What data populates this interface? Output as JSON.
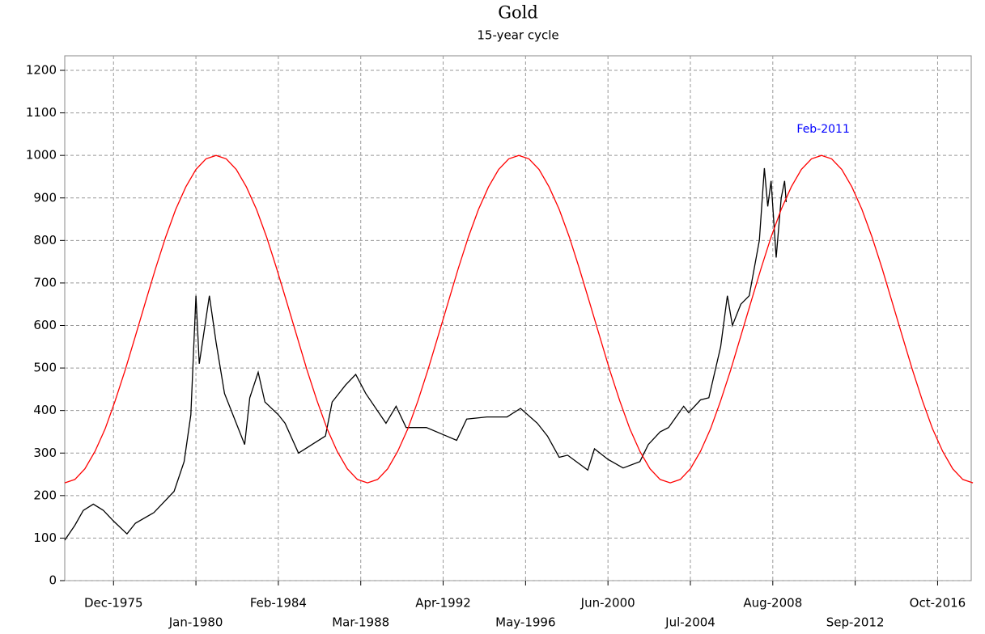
{
  "chart_data": {
    "type": "line",
    "title": "Gold",
    "subtitle": "15-year cycle",
    "xlim": [
      "1973-07",
      "2018-06"
    ],
    "xticks": [
      {
        "value": "1975-12",
        "label": "Dec-1975"
      },
      {
        "value": "1980-01",
        "label": "Jan-1980"
      },
      {
        "value": "1984-02",
        "label": "Feb-1984"
      },
      {
        "value": "1988-03",
        "label": "Mar-1988"
      },
      {
        "value": "1992-04",
        "label": "Apr-1992"
      },
      {
        "value": "1996-05",
        "label": "May-1996"
      },
      {
        "value": "2000-06",
        "label": "Jun-2000"
      },
      {
        "value": "2004-07",
        "label": "Jul-2004"
      },
      {
        "value": "2008-08",
        "label": "Aug-2008"
      },
      {
        "value": "2012-09",
        "label": "Sep-2012"
      },
      {
        "value": "2016-10",
        "label": "Oct-2016"
      }
    ],
    "ylim": [
      0,
      1200
    ],
    "yticks": [
      0,
      100,
      200,
      300,
      400,
      500,
      600,
      700,
      800,
      900,
      1000,
      1100,
      1200
    ],
    "grid": true,
    "annotations": [
      {
        "text": "Feb-2011",
        "x": "2011-02",
        "color": "#0000ff"
      }
    ],
    "series": [
      {
        "color": "#000000",
        "x": [
          "1973-07",
          "1974-01",
          "1974-06",
          "1974-12",
          "1975-06",
          "1975-12",
          "1976-08",
          "1977-01",
          "1977-12",
          "1978-12",
          "1979-06",
          "1979-10",
          "1980-01",
          "1980-03",
          "1980-09",
          "1981-01",
          "1981-06",
          "1982-06",
          "1982-09",
          "1983-02",
          "1983-06",
          "1984-02",
          "1984-06",
          "1985-02",
          "1985-10",
          "1986-06",
          "1986-10",
          "1987-06",
          "1987-12",
          "1988-06",
          "1989-06",
          "1989-12",
          "1990-06",
          "1991-06",
          "1992-06",
          "1992-12",
          "1993-06",
          "1994-06",
          "1995-06",
          "1996-02",
          "1996-12",
          "1997-06",
          "1998-01",
          "1998-06",
          "1999-06",
          "1999-10",
          "2000-06",
          "2001-03",
          "2002-01",
          "2002-06",
          "2003-01",
          "2003-06",
          "2004-03",
          "2004-06",
          "2005-01",
          "2005-06",
          "2006-01",
          "2006-05",
          "2006-08",
          "2007-01",
          "2007-06",
          "2007-12",
          "2008-03",
          "2008-05",
          "2008-07",
          "2008-10",
          "2009-01",
          "2009-03",
          "2009-04"
        ],
        "values": [
          95,
          130,
          165,
          180,
          165,
          140,
          110,
          135,
          160,
          210,
          280,
          390,
          670,
          510,
          670,
          560,
          440,
          320,
          430,
          490,
          420,
          390,
          370,
          300,
          320,
          340,
          420,
          460,
          485,
          440,
          370,
          410,
          360,
          360,
          340,
          330,
          380,
          385,
          385,
          405,
          370,
          340,
          290,
          295,
          260,
          310,
          285,
          265,
          280,
          320,
          350,
          360,
          410,
          395,
          425,
          430,
          550,
          670,
          600,
          650,
          670,
          800,
          970,
          880,
          940,
          760,
          900,
          940,
          890
        ]
      },
      {
        "color": "#ff0000",
        "x": [
          "1973-07",
          "1974-01",
          "1974-07",
          "1975-01",
          "1975-07",
          "1976-01",
          "1976-07",
          "1977-01",
          "1977-07",
          "1978-01",
          "1978-07",
          "1979-01",
          "1979-07",
          "1980-01",
          "1980-07",
          "1981-01",
          "1981-07",
          "1982-01",
          "1982-07",
          "1983-01",
          "1983-07",
          "1984-01",
          "1984-07",
          "1985-01",
          "1985-07",
          "1986-01",
          "1986-07",
          "1987-01",
          "1987-07",
          "1988-01",
          "1988-07",
          "1989-01",
          "1989-07",
          "1990-01",
          "1990-07",
          "1991-01",
          "1991-07",
          "1992-01",
          "1992-07",
          "1993-01",
          "1993-07",
          "1994-01",
          "1994-07",
          "1995-01",
          "1995-07",
          "1996-01",
          "1996-07",
          "1997-01",
          "1997-07",
          "1998-01",
          "1998-07",
          "1999-01",
          "1999-07",
          "2000-01",
          "2000-07",
          "2001-01",
          "2001-07",
          "2002-01",
          "2002-07",
          "2003-01",
          "2003-07",
          "2004-01",
          "2004-07",
          "2005-01",
          "2005-07",
          "2006-01",
          "2006-07",
          "2007-01",
          "2007-07",
          "2008-01",
          "2008-07",
          "2009-01",
          "2009-07",
          "2010-01",
          "2010-07",
          "2011-01",
          "2011-07",
          "2012-01",
          "2012-07",
          "2013-01",
          "2013-07",
          "2014-01",
          "2014-07",
          "2015-01",
          "2015-07",
          "2016-01",
          "2016-07",
          "2017-01",
          "2017-07",
          "2018-01",
          "2018-07"
        ],
        "values": [
          230,
          238,
          263,
          304,
          357,
          423,
          496,
          575,
          655,
          734,
          808,
          873,
          926,
          967,
          992,
          1000,
          992,
          967,
          926,
          873,
          808,
          734,
          655,
          575,
          496,
          423,
          357,
          304,
          263,
          238,
          230,
          238,
          263,
          304,
          357,
          423,
          496,
          575,
          655,
          734,
          808,
          873,
          926,
          967,
          992,
          1000,
          992,
          967,
          926,
          873,
          808,
          734,
          655,
          575,
          496,
          423,
          357,
          304,
          263,
          238,
          230,
          238,
          263,
          304,
          357,
          423,
          496,
          575,
          655,
          734,
          808,
          873,
          926,
          967,
          992,
          1000,
          992,
          967,
          926,
          873,
          808,
          734,
          655,
          575,
          496,
          423,
          357,
          304,
          263,
          238,
          230
        ]
      }
    ]
  }
}
